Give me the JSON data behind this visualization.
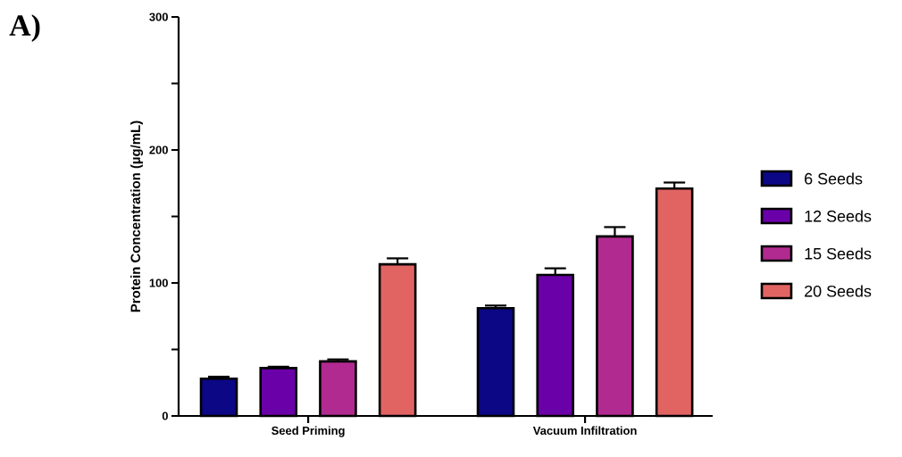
{
  "chart_data": {
    "type": "bar",
    "ylabel": "Protein Concentration (µg/mL)",
    "annotations": [
      "A)"
    ],
    "categories": [
      "Seed Priming",
      "Vacuum Infiltration"
    ],
    "series": [
      {
        "name": "6 Seeds",
        "color": "#0c0785",
        "values": [
          28,
          81
        ],
        "errors": [
          [
            28,
            29.5
          ],
          [
            81,
            83
          ]
        ]
      },
      {
        "name": "12 Seeds",
        "color": "#6a00a8",
        "values": [
          36,
          106
        ],
        "errors": [
          [
            36,
            37
          ],
          [
            106,
            111
          ]
        ]
      },
      {
        "name": "15 Seeds",
        "color": "#b12a90",
        "values": [
          41,
          135
        ],
        "errors": [
          [
            41,
            42.5
          ],
          [
            135,
            142
          ]
        ]
      },
      {
        "name": "20 Seeds",
        "color": "#e16462",
        "values": [
          114,
          171
        ],
        "errors": [
          [
            114,
            118.5
          ],
          [
            171,
            175.5
          ]
        ]
      }
    ],
    "ylim": [
      0,
      300
    ],
    "yticks": [
      0,
      {
        "value": 50,
        "label": null
      },
      100,
      {
        "value": 150,
        "label": null
      },
      200,
      {
        "value": 250,
        "label": null
      },
      300
    ],
    "legend": "right"
  }
}
